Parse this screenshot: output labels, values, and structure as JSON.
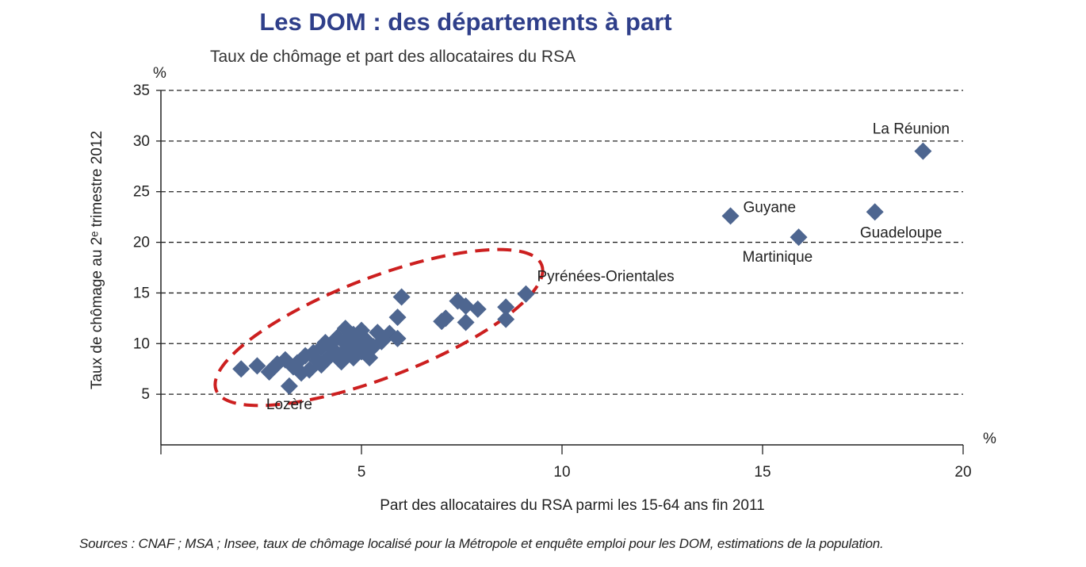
{
  "colors": {
    "title": "#2f3f8a",
    "marker": "#4e6690",
    "ellipse": "#cc1f1f",
    "grid": "#222222"
  },
  "chart_data": {
    "type": "scatter",
    "title": "Les DOM : des départements à part",
    "subtitle": "Taux de chômage et part des allocataires du RSA",
    "xlabel": "Part des allocataires du RSA parmi les 15-64 ans fin 2011",
    "ylabel": "Taux de chômage au 2ᵉ trimestre 2012",
    "x_unit": "%",
    "y_unit": "%",
    "xlim": [
      0,
      20
    ],
    "ylim": [
      0,
      35
    ],
    "xticks": [
      5,
      10,
      15,
      20
    ],
    "yticks": [
      5,
      10,
      15,
      20,
      25,
      30,
      35
    ],
    "grid": "horizontal dashed",
    "annotation": "dashed red ellipse around metropolitan departments",
    "points": [
      {
        "x": 19.0,
        "y": 29.0,
        "label": "La Réunion"
      },
      {
        "x": 17.8,
        "y": 23.0,
        "label": "Guadeloupe"
      },
      {
        "x": 14.2,
        "y": 22.6,
        "label": "Guyane"
      },
      {
        "x": 15.9,
        "y": 20.5,
        "label": "Martinique"
      },
      {
        "x": 9.1,
        "y": 14.9,
        "label": "Pyrénées-Orientales"
      },
      {
        "x": 3.2,
        "y": 5.8,
        "label": "Lozère"
      },
      {
        "x": 2.0,
        "y": 7.5
      },
      {
        "x": 2.4,
        "y": 7.8
      },
      {
        "x": 2.7,
        "y": 7.2
      },
      {
        "x": 2.9,
        "y": 8.0
      },
      {
        "x": 3.1,
        "y": 8.4
      },
      {
        "x": 3.3,
        "y": 7.7
      },
      {
        "x": 3.4,
        "y": 8.1
      },
      {
        "x": 3.5,
        "y": 7.1
      },
      {
        "x": 3.6,
        "y": 8.8
      },
      {
        "x": 3.7,
        "y": 7.4
      },
      {
        "x": 3.8,
        "y": 9.1
      },
      {
        "x": 3.9,
        "y": 8.3
      },
      {
        "x": 4.0,
        "y": 9.6
      },
      {
        "x": 4.0,
        "y": 7.9
      },
      {
        "x": 4.1,
        "y": 10.1
      },
      {
        "x": 4.2,
        "y": 8.7
      },
      {
        "x": 4.3,
        "y": 9.4
      },
      {
        "x": 4.4,
        "y": 10.6
      },
      {
        "x": 4.5,
        "y": 9.0
      },
      {
        "x": 4.5,
        "y": 8.2
      },
      {
        "x": 4.6,
        "y": 11.5
      },
      {
        "x": 4.6,
        "y": 10.0
      },
      {
        "x": 4.7,
        "y": 9.3
      },
      {
        "x": 4.8,
        "y": 10.9
      },
      {
        "x": 4.8,
        "y": 8.6
      },
      {
        "x": 4.9,
        "y": 9.9
      },
      {
        "x": 5.0,
        "y": 11.3
      },
      {
        "x": 5.0,
        "y": 9.2
      },
      {
        "x": 5.1,
        "y": 10.4
      },
      {
        "x": 5.2,
        "y": 8.6
      },
      {
        "x": 5.3,
        "y": 9.7
      },
      {
        "x": 5.4,
        "y": 11.1
      },
      {
        "x": 5.5,
        "y": 10.2
      },
      {
        "x": 5.7,
        "y": 11.0
      },
      {
        "x": 5.9,
        "y": 10.5
      },
      {
        "x": 5.9,
        "y": 12.6
      },
      {
        "x": 6.0,
        "y": 14.6
      },
      {
        "x": 7.0,
        "y": 12.2
      },
      {
        "x": 7.1,
        "y": 12.5
      },
      {
        "x": 7.4,
        "y": 14.2
      },
      {
        "x": 7.6,
        "y": 12.1
      },
      {
        "x": 7.6,
        "y": 13.7
      },
      {
        "x": 7.9,
        "y": 13.4
      },
      {
        "x": 8.6,
        "y": 13.6
      },
      {
        "x": 8.6,
        "y": 12.4
      }
    ],
    "source": "Sources : CNAF ; MSA ; Insee, taux de chômage localisé pour la Métropole et enquête emploi pour les DOM, estimations de la population."
  }
}
